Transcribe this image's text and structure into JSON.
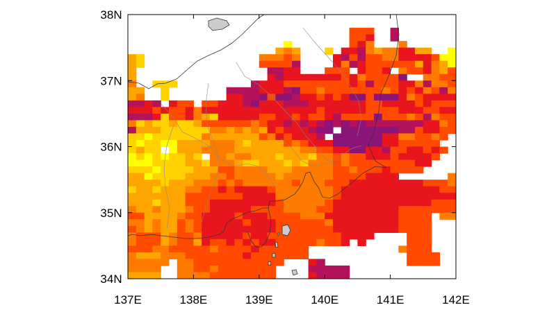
{
  "map": {
    "lon_range": [
      137,
      142
    ],
    "lat_range": [
      34,
      38
    ],
    "lon_ticks": [
      "137E",
      "138E",
      "139E",
      "140E",
      "141E",
      "142E"
    ],
    "lat_ticks": [
      "38N",
      "37N",
      "36N",
      "35N",
      "34N"
    ],
    "frame_color": "#000000",
    "coast_color": "#333333",
    "land_gray": "#cccccc",
    "palette": [
      "#ffff00",
      "#ffd200",
      "#ffa500",
      "#ff7b00",
      "#ff4a00",
      "#e8141e",
      "#b4125a",
      "#8c1478",
      "#5a14b4"
    ],
    "grid": {
      "lon0": 137.0,
      "lat_top": 37.8,
      "dlon": 0.125,
      "dlat": 0.1,
      "levels": [
        "...........................555..7...................",
        "...........................556..7..........566......",
        "...................1.......564...4...........667....",
        "..................343...2.66743446633..1.....5668...",
        "32..............44454....675755446666511...25456....",
        "32..............55557....647655555536431..66454.....",
        "3................7766...555.6556.4556435..55658.....",
        "3................67666666656455558..445557.66544....",
        "4..222.........76665555555565755566474458.64654.....",
        "33..2.......7777666785545555555456564574565454......",
        "34..2.......6677858876656568858886456666445.........",
        "7767.655.55666786667776666666556666565555.6.........",
        "66656556466666666666666566666555566655666...........",
        "77762556432666665566565567555585554574556...........",
        "42322322355555545667676787878777777766456...........",
        "7333222222443434365666788.888888877566555...........",
        "221222222433333354656667.88888866445545.............",
        "21221133334443233335456668888886655555..............",
        "2322.1333444433333333445566886675566565.............",
        "121212232.4434433323332445455666566665..............",
        "1112222332444322333232444545555555566...............",
        "222122223335544443334444455455565555................",
        "331222233344544444344444455556666......4.4..........",
        "33332333444545444444544455566666666655544...........",
        "23323334455656666544444445666666666666554...........",
        "3333333555555566664444444566666666666666...........",
        "33323335556666666654444456666666666665555...........",
        "4334333455666665555444455666666665555555............",
        "5533334556666566655554446666666665555.44............",
        "4434335456666656665555554666666665555...............",
        "5434335456666666665555555666666665555...............",
        "455534554666665665555555556666....555...............",
        "455534553655656566555554556.6.....555...............",
        "5554455555455556555555...........4555...............",
        "4333444555555565555555............5555..............",
        "44444.4455555555555...67..........5555..............",
        "4444..445545555555....77777.........................",
        "3333..444455555555....67777.........................",
        "3333.........................77.....................",
        "33........................67777.....................",
        "3.........................66666.....................",
        "3...........................................44......",
        "..........................................44.......",
        "..................................................."
      ]
    }
  }
}
